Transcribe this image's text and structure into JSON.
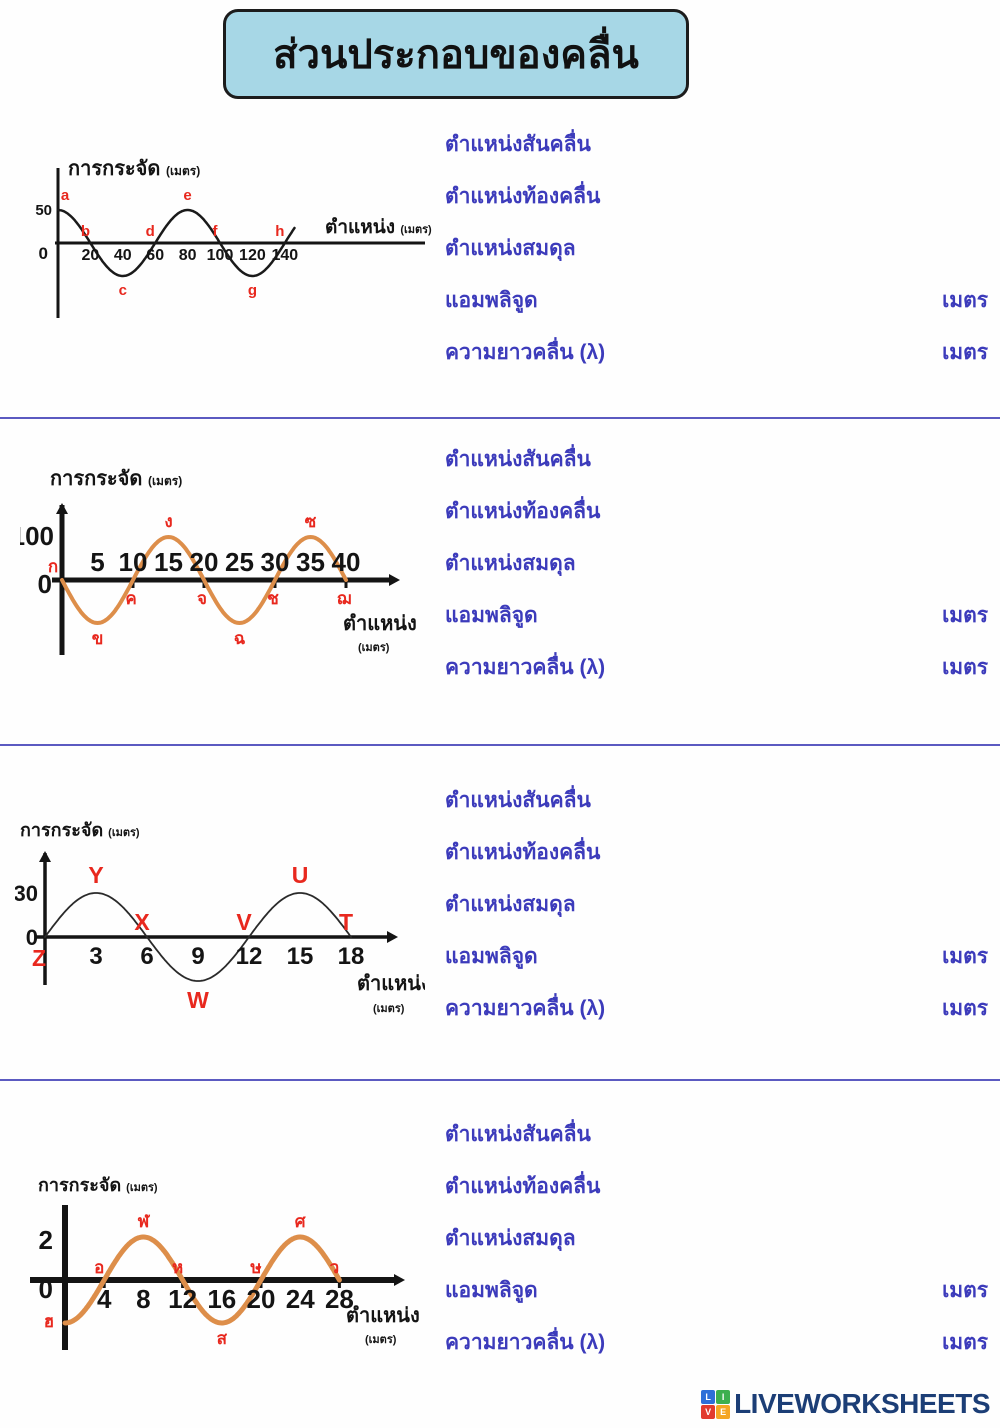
{
  "title": "ส่วนประกอบของคลื่น",
  "answer_labels": {
    "crest": "ตำแหน่งสันคลื่น",
    "trough": "ตำแหน่งท้องคลื่น",
    "equilibrium": "ตำแหน่งสมดุล",
    "amplitude": "แอมพลิจูด",
    "wavelength": "ความยาวคลื่น (λ)",
    "unit": "เมตร"
  },
  "colors": {
    "label_blue": "#3c3bbb",
    "divider_blue": "#5b5ac1",
    "point_red": "#e8281e",
    "wave_orange": "#dd8e4a",
    "wave_black": "#1a1a1a",
    "title_bg": "#a7d7e6",
    "logo_navy": "#1c3e76"
  },
  "footer": {
    "logo_text": "LIVEWORKSHEETS",
    "tiles": [
      "L",
      "I",
      "V",
      "E"
    ],
    "tile_colors": [
      "#2e6fd8",
      "#3daf4e",
      "#e23b2e",
      "#f5a623"
    ]
  },
  "chart_data": [
    {
      "type": "line",
      "title": "การกระจัด",
      "title_unit": "(เมตร)",
      "xlabel": "ตำแหน่ง",
      "xlabel_unit": "(เมตร)",
      "y_max_label": "50",
      "y_zero_label": "0",
      "amplitude": 50,
      "wavelength": 80,
      "waveform": "cos",
      "x_ticks": [
        20,
        40,
        60,
        80,
        100,
        120,
        140
      ],
      "x_end": 146,
      "wave_color": "#1a1a1a",
      "points": [
        {
          "label": "a",
          "x": 0,
          "pos": "crest"
        },
        {
          "label": "b",
          "x": 20,
          "pos": "above"
        },
        {
          "label": "c",
          "x": 40,
          "pos": "trough"
        },
        {
          "label": "d",
          "x": 60,
          "pos": "above"
        },
        {
          "label": "e",
          "x": 80,
          "pos": "crest"
        },
        {
          "label": "f",
          "x": 100,
          "pos": "above"
        },
        {
          "label": "g",
          "x": 120,
          "pos": "trough"
        },
        {
          "label": "h",
          "x": 140,
          "pos": "above"
        }
      ]
    },
    {
      "type": "line",
      "title": "การกระจัด",
      "title_unit": "(เมตร)",
      "xlabel": "ตำแหน่ง",
      "xlabel_unit": "(เมตร)",
      "y_max_label": "100",
      "y_zero_label": "0",
      "amplitude": 100,
      "wavelength": 20,
      "waveform": "-sin",
      "x_ticks": [
        5,
        10,
        15,
        20,
        25,
        30,
        35,
        40
      ],
      "x_end": 40,
      "wave_color": "#dd8e4a",
      "points": [
        {
          "label": "ก",
          "x": 0,
          "pos": "origin-above"
        },
        {
          "label": "ข",
          "x": 5,
          "pos": "trough"
        },
        {
          "label": "ค",
          "x": 10,
          "pos": "below"
        },
        {
          "label": "ง",
          "x": 15,
          "pos": "crest"
        },
        {
          "label": "จ",
          "x": 20,
          "pos": "below"
        },
        {
          "label": "ฉ",
          "x": 25,
          "pos": "trough"
        },
        {
          "label": "ช",
          "x": 30,
          "pos": "below"
        },
        {
          "label": "ซ",
          "x": 35,
          "pos": "crest"
        },
        {
          "label": "ฌ",
          "x": 40,
          "pos": "below"
        }
      ]
    },
    {
      "type": "line",
      "title": "การกระจัด",
      "title_unit": "(เมตร)",
      "xlabel": "ตำแหน่ง",
      "xlabel_unit": "(เมตร)",
      "y_max_label": "30",
      "y_zero_label": "0",
      "amplitude": 30,
      "wavelength": 12,
      "waveform": "sin",
      "x_ticks": [
        3,
        6,
        9,
        12,
        15,
        18
      ],
      "x_end": 18,
      "wave_color": "#2a2a2a",
      "points": [
        {
          "label": "Z",
          "x": 0,
          "pos": "origin-below"
        },
        {
          "label": "Y",
          "x": 3,
          "pos": "crest"
        },
        {
          "label": "X",
          "x": 6,
          "pos": "above"
        },
        {
          "label": "W",
          "x": 9,
          "pos": "trough"
        },
        {
          "label": "V",
          "x": 12,
          "pos": "above"
        },
        {
          "label": "U",
          "x": 15,
          "pos": "crest"
        },
        {
          "label": "T",
          "x": 18,
          "pos": "above"
        }
      ]
    },
    {
      "type": "line",
      "title": "การกระจัด",
      "title_unit": "(เมตร)",
      "xlabel": "ตำแหน่ง",
      "xlabel_unit": "(เมตร)",
      "y_max_label": "2",
      "y_zero_label": "0",
      "amplitude": 2,
      "wavelength": 16,
      "waveform": "-cos",
      "x_ticks": [
        4,
        8,
        12,
        16,
        20,
        24,
        28
      ],
      "x_end": 28,
      "wave_color": "#dd8e4a",
      "points": [
        {
          "label": "ฮ",
          "x": 0,
          "pos": "left-trough"
        },
        {
          "label": "อ",
          "x": 4,
          "pos": "above"
        },
        {
          "label": "ฬ",
          "x": 8,
          "pos": "crest"
        },
        {
          "label": "ห",
          "x": 12,
          "pos": "above"
        },
        {
          "label": "ส",
          "x": 16,
          "pos": "trough"
        },
        {
          "label": "ษ",
          "x": 20,
          "pos": "above"
        },
        {
          "label": "ศ",
          "x": 24,
          "pos": "crest"
        },
        {
          "label": "ว",
          "x": 28,
          "pos": "above"
        }
      ]
    }
  ]
}
